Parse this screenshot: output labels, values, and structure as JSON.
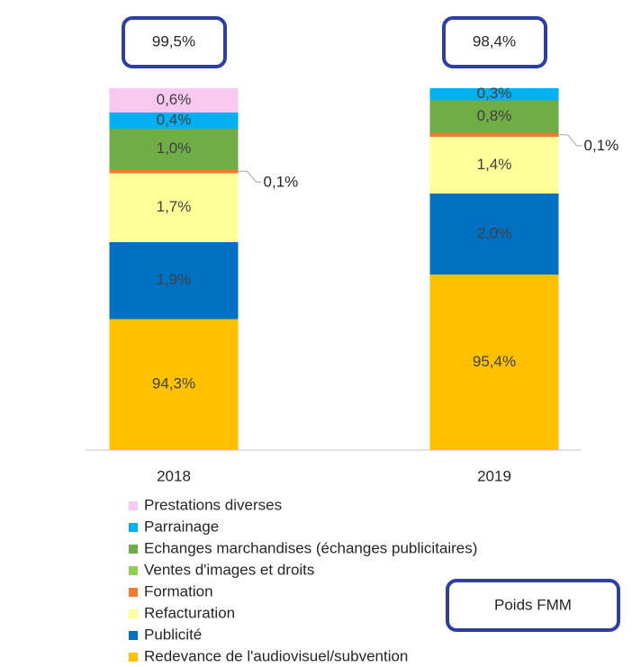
{
  "chart_data": {
    "type": "bar",
    "stacked": true,
    "categories": [
      "2018",
      "2019"
    ],
    "series": [
      {
        "name": "Redevance de l'audiovisuel/subvention",
        "color": "#ffc000",
        "values": [
          94.3,
          95.4
        ],
        "value_labels": [
          "94,3%",
          "95,4%"
        ]
      },
      {
        "name": "Publicité",
        "color": "#0070c0",
        "values": [
          1.9,
          2.0
        ],
        "value_labels": [
          "1,9%",
          "2,0%"
        ]
      },
      {
        "name": "Refacturation",
        "color": "#ffff99",
        "values": [
          1.7,
          1.4
        ],
        "value_labels": [
          "1,7%",
          "1,4%"
        ]
      },
      {
        "name": "Formation",
        "color": "#ed7d31",
        "values": [
          0.1,
          0.1
        ],
        "value_labels": [
          "0,1%",
          "0,1%"
        ]
      },
      {
        "name": "Ventes d'images et droits",
        "color": "#92d050",
        "values": [
          null,
          null
        ]
      },
      {
        "name": "Echanges marchandises (échanges publicitaires)",
        "color": "#70ad47",
        "values": [
          1.0,
          0.8
        ],
        "value_labels": [
          "1,0%",
          "0,8%"
        ]
      },
      {
        "name": "Parrainage",
        "color": "#00b0f0",
        "values": [
          0.4,
          0.3
        ],
        "value_labels": [
          "0,4%",
          "0,3%"
        ]
      },
      {
        "name": "Prestations diverses",
        "color": "#f9c8f0",
        "values": [
          0.6,
          null
        ],
        "value_labels": [
          "0,6%",
          null
        ]
      }
    ],
    "totals": [
      99.5,
      98.4
    ],
    "total_labels": [
      "99,5%",
      "98,4%"
    ],
    "annotation": "Poids FMM"
  }
}
